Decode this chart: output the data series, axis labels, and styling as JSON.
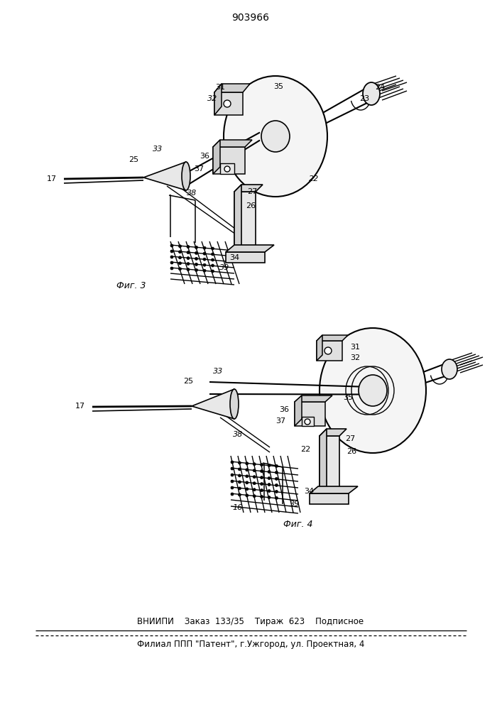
{
  "title_number": "903966",
  "fig3_label": "Фиг. 3",
  "fig4_label": "Фиг. 4",
  "footer_line1": "ВНИИПИ    Заказ  133/35    Тираж  623    Подписное",
  "footer_line2": "Филиал ППП \"Патент\", г.Ужгород, ул. Проектная, 4",
  "bg_color": "#ffffff",
  "line_color": "#000000",
  "fig_width": 7.07,
  "fig_height": 10.0,
  "dpi": 100
}
